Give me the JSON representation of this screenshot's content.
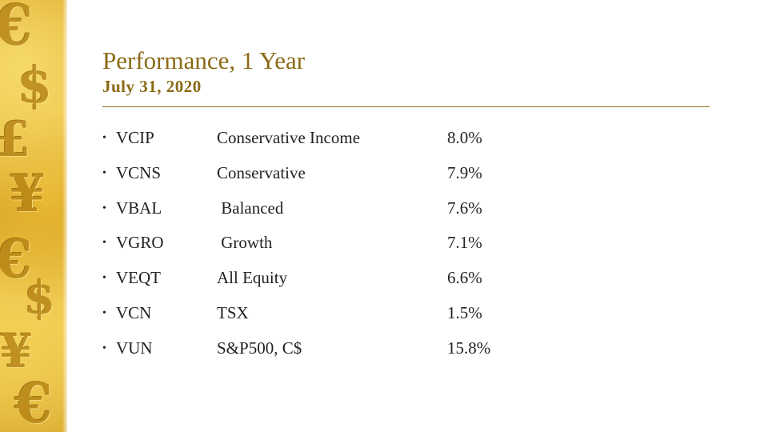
{
  "slide": {
    "title": "Performance, 1 Year",
    "subtitle": "July 31, 2020",
    "accent_color": "#8a6a15"
  },
  "decoration": {
    "glyphs": [
      "€",
      "$",
      "£",
      "¥",
      "€",
      "$",
      "¥",
      "€"
    ]
  },
  "funds": [
    {
      "bullet": "•",
      "ticker": "VCIP",
      "name": "Conservative Income",
      "value": "8.0%"
    },
    {
      "bullet": "•",
      "ticker": "VCNS",
      "name": "Conservative",
      "value": "7.9%"
    },
    {
      "bullet": "•",
      "ticker": "VBAL",
      "name": " Balanced",
      "value": "7.6%"
    },
    {
      "bullet": "•",
      "ticker": "VGRO",
      "name": " Growth",
      "value": "7.1%"
    },
    {
      "bullet": "•",
      "ticker": "VEQT",
      "name": "All Equity",
      "value": "6.6%"
    },
    {
      "bullet": "•",
      "ticker": "VCN",
      "name": "TSX",
      "value": "1.5%"
    },
    {
      "bullet": "•",
      "ticker": "VUN",
      "name": "S&P500, C$",
      "value": "15.8%"
    }
  ]
}
